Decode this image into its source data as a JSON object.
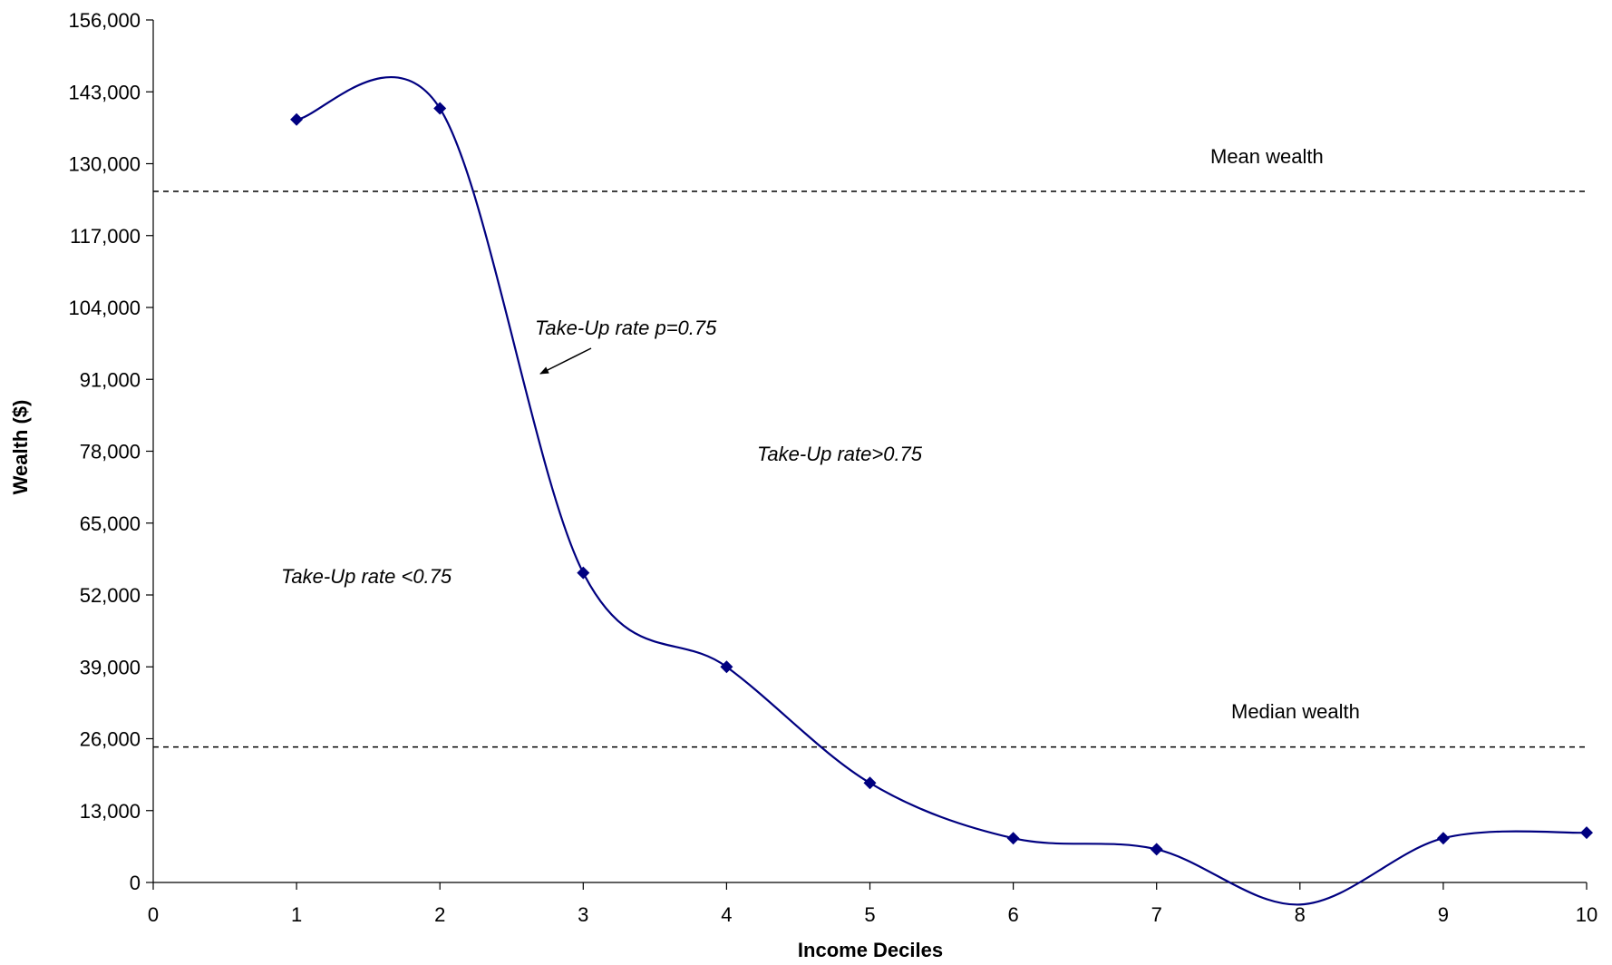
{
  "chart_data": {
    "type": "line",
    "title": "",
    "xlabel": "Income Deciles",
    "ylabel": "Wealth ($)",
    "xlim": [
      0,
      10
    ],
    "ylim": [
      0,
      156000
    ],
    "x_ticks": [
      "0",
      "1",
      "2",
      "3",
      "4",
      "5",
      "6",
      "7",
      "8",
      "9",
      "10"
    ],
    "y_ticks": [
      "0",
      "13,000",
      "26,000",
      "39,000",
      "52,000",
      "65,000",
      "78,000",
      "91,000",
      "104,000",
      "117,000",
      "130,000",
      "143,000",
      "156,000"
    ],
    "grid": false,
    "legend": "none",
    "series": [
      {
        "color": "#000080",
        "smooth": true,
        "marker": "diamond",
        "x": [
          1,
          2,
          3,
          4,
          5,
          6,
          7,
          8,
          9,
          10
        ],
        "y": [
          138000,
          140000,
          56000,
          39000,
          18000,
          8000,
          6000,
          -4000,
          8000,
          9000
        ]
      }
    ],
    "reference_lines": [
      {
        "label": "Mean wealth",
        "y": 125000
      },
      {
        "label": "Median wealth",
        "y": 24500
      }
    ],
    "annotations": [
      {
        "text": "Take-Up rate p=0.75",
        "italic": true,
        "arrow": true
      },
      {
        "text": "Take-Up rate>0.75",
        "italic": true
      },
      {
        "text": "Take-Up rate <0.75",
        "italic": true
      }
    ]
  }
}
